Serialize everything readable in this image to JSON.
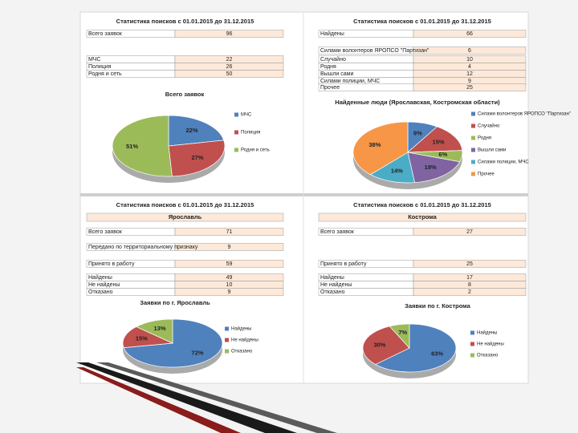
{
  "tables": [
    {
      "title": "Статистика поисков с 01.01.2015 до 31.12.2015",
      "rows": [
        {
          "label": "Всего заявок",
          "value": "96"
        },
        {
          "label": "МЧС",
          "value": "22"
        },
        {
          "label": "Полиция",
          "value": "26"
        },
        {
          "label": "Родня и сеть",
          "value": "50"
        }
      ]
    },
    {
      "title": "Статистика поисков с 01.01.2015 до 31.12.2015",
      "rows": [
        {
          "label": "Найдены",
          "value": "66"
        },
        {
          "label": "Силами волонтеров ЯРОПСО \"Партизан\"",
          "value": "6"
        },
        {
          "label": "Случайно",
          "value": "10"
        },
        {
          "label": "Родня",
          "value": "4"
        },
        {
          "label": "Вышли сами",
          "value": "12"
        },
        {
          "label": "Силами полиции, МЧС",
          "value": "9"
        },
        {
          "label": "Прочее",
          "value": "25"
        }
      ]
    },
    {
      "title": "Статистика поисков с 01.01.2015 до 31.12.2015",
      "city": "Ярославль",
      "rows": [
        {
          "label": "Всего заявок",
          "value": "71"
        },
        {
          "label": "Передано по территориальному признаку",
          "value": "9"
        },
        {
          "label": "Принято в работу",
          "value": "59"
        },
        {
          "label": "Найдены",
          "value": "49"
        },
        {
          "label": "Не найдены",
          "value": "10"
        },
        {
          "label": "Отказано",
          "value": "9"
        }
      ]
    },
    {
      "title": "Статистика поисков с 01.01.2015 до 31.12.2015",
      "city": "Кострома",
      "rows": [
        {
          "label": "Всего заявок",
          "value": "27"
        },
        {
          "label": "Принято в работу",
          "value": "25"
        },
        {
          "label": "Найдены",
          "value": "17"
        },
        {
          "label": "Не найдены",
          "value": "8"
        },
        {
          "label": "Отказано",
          "value": "2"
        }
      ]
    }
  ],
  "chart_data": [
    {
      "type": "pie",
      "title": "Всего заявок",
      "categories": [
        "МЧС",
        "Полиция",
        "Родня и сеть"
      ],
      "values": [
        22,
        27,
        51
      ],
      "value_labels": [
        "22%",
        "27%",
        "51%"
      ],
      "colors": [
        "#4f81bd",
        "#c0504d",
        "#9bbb59"
      ]
    },
    {
      "type": "pie",
      "title": "Найденные люди (Ярославская, Костромская области)",
      "categories": [
        "Силами волонтеров ЯРОПСО \"Партизан\"",
        "Случайно",
        "Родня",
        "Вышли сами",
        "Силами полиции, МЧС",
        "Прочее"
      ],
      "values": [
        9,
        15,
        6,
        18,
        14,
        38
      ],
      "value_labels": [
        "9%",
        "15%",
        "6%",
        "18%",
        "14%",
        "38%"
      ],
      "colors": [
        "#4f81bd",
        "#c0504d",
        "#9bbb59",
        "#8064a2",
        "#4bacc6",
        "#f79646"
      ]
    },
    {
      "type": "pie",
      "title": "Заявки по г. Ярославль",
      "categories": [
        "Найдены",
        "Не найдены",
        "Отказано"
      ],
      "values": [
        72,
        15,
        13
      ],
      "value_labels": [
        "72%",
        "15%",
        "13%"
      ],
      "colors": [
        "#4f81bd",
        "#c0504d",
        "#9bbb59"
      ]
    },
    {
      "type": "pie",
      "title": "Заявки по г. Кострома",
      "categories": [
        "Найдены",
        "Не найдены",
        "Отказано"
      ],
      "values": [
        63,
        30,
        7
      ],
      "value_labels": [
        "63%",
        "30%",
        "7%"
      ],
      "colors": [
        "#4f81bd",
        "#c0504d",
        "#9bbb59"
      ]
    }
  ]
}
